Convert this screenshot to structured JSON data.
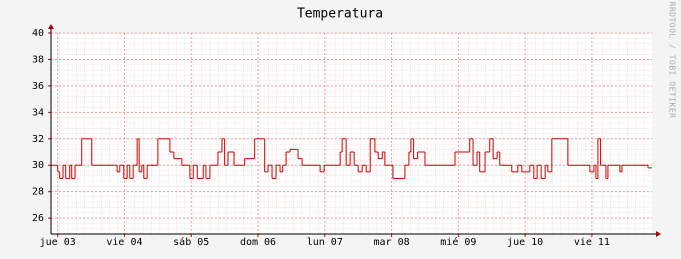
{
  "chart_data": {
    "type": "line",
    "title": "Temperatura",
    "watermark": "RRDTOOL / TOBI OETIKER",
    "color": "#cc0000",
    "step": true,
    "grid": true,
    "xlim": [
      0,
      9
    ],
    "ylim": [
      24.8,
      40
    ],
    "yticks": [
      26,
      28,
      30,
      32,
      34,
      36,
      38,
      40
    ],
    "xticks": [
      {
        "value": 0.1,
        "label": "jue 03"
      },
      {
        "value": 1.1,
        "label": "vie 04"
      },
      {
        "value": 2.1,
        "label": "sáb 05"
      },
      {
        "value": 3.1,
        "label": "dom 06"
      },
      {
        "value": 4.1,
        "label": "lun 07"
      },
      {
        "value": 5.1,
        "label": "mar 08"
      },
      {
        "value": 6.1,
        "label": "mié 09"
      },
      {
        "value": 7.1,
        "label": "jue 10"
      },
      {
        "value": 8.1,
        "label": "vie 11"
      }
    ],
    "series": [
      {
        "name": "Temperatura",
        "color": "#cc0000",
        "x": [
          0,
          0.1,
          0.13,
          0.18,
          0.22,
          0.28,
          0.31,
          0.36,
          0.46,
          0.61,
          0.99,
          1.03,
          1.09,
          1.14,
          1.18,
          1.23,
          1.29,
          1.32,
          1.36,
          1.39,
          1.44,
          1.6,
          1.78,
          1.84,
          1.96,
          2.08,
          2.13,
          2.19,
          2.28,
          2.32,
          2.38,
          2.5,
          2.56,
          2.6,
          2.65,
          2.74,
          2.9,
          3.05,
          3.2,
          3.25,
          3.31,
          3.37,
          3.43,
          3.47,
          3.52,
          3.58,
          3.7,
          3.76,
          4.03,
          4.09,
          4.33,
          4.36,
          4.42,
          4.48,
          4.54,
          4.6,
          4.66,
          4.72,
          4.78,
          4.85,
          4.9,
          4.96,
          5.0,
          5.12,
          5.3,
          5.36,
          5.39,
          5.43,
          5.49,
          5.6,
          6.05,
          6.27,
          6.32,
          6.38,
          6.42,
          6.5,
          6.57,
          6.62,
          6.68,
          6.72,
          6.9,
          6.99,
          7.05,
          7.17,
          7.23,
          7.28,
          7.34,
          7.4,
          7.44,
          7.5,
          7.74,
          8.07,
          8.13,
          8.16,
          8.19,
          8.23,
          8.31,
          8.34,
          8.52,
          8.55,
          8.94
        ],
        "values": [
          30,
          29.5,
          29,
          30,
          29,
          30,
          29,
          30,
          32,
          30,
          29.5,
          30,
          29,
          30,
          29,
          30,
          32,
          29.5,
          30,
          29,
          30,
          32,
          31,
          30.5,
          30,
          29,
          30,
          29,
          30,
          29,
          30,
          31,
          32,
          30,
          31,
          30,
          30.5,
          32,
          29.5,
          30,
          29,
          30,
          29.5,
          30,
          31,
          31.2,
          30.5,
          30,
          29.5,
          30,
          31,
          32,
          30,
          31,
          30,
          29.5,
          30,
          29.5,
          32,
          31,
          30.5,
          31,
          30,
          29,
          30,
          31,
          32,
          30.5,
          31,
          30,
          31,
          32,
          30,
          31,
          29.5,
          31,
          32,
          30.5,
          31,
          30,
          29.5,
          30,
          29.5,
          30,
          29,
          30,
          29,
          30,
          29.5,
          32,
          30,
          29.5,
          30,
          29,
          32,
          30,
          29,
          30,
          29.5,
          30,
          29.8
        ]
      }
    ]
  }
}
